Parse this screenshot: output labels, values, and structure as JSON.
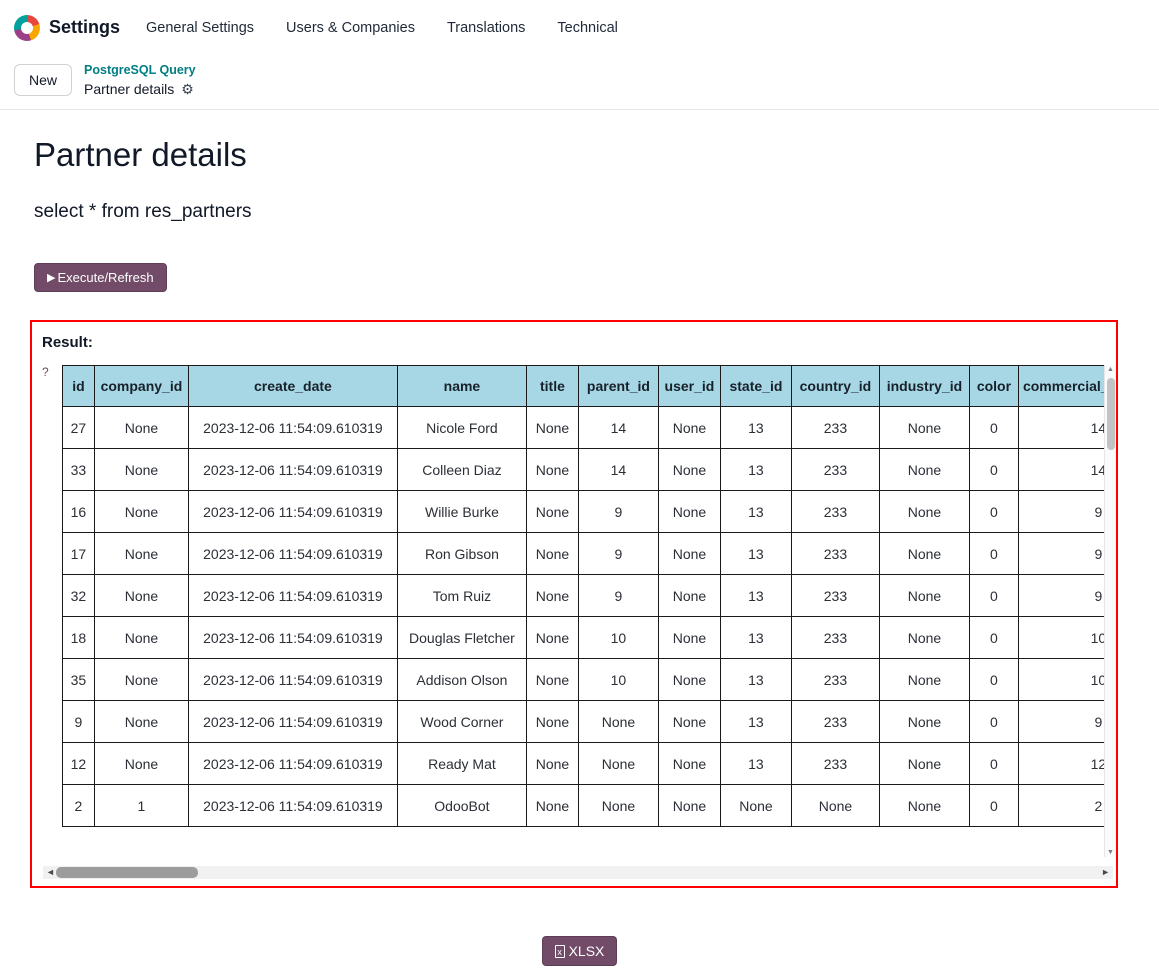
{
  "nav": {
    "app_name": "Settings",
    "menu_items": [
      "General Settings",
      "Users & Companies",
      "Translations",
      "Technical"
    ]
  },
  "breadcrumb": {
    "new_button": "New",
    "parent_link": "PostgreSQL Query",
    "current": "Partner details",
    "gear_icon": "⚙"
  },
  "main": {
    "title": "Partner details",
    "query": "select * from res_partners",
    "execute_icon": "▶",
    "execute_label": "Execute/Refresh",
    "result_label": "Result:",
    "help_icon": "?",
    "xlsx_icon": "x",
    "xlsx_label": "XLSX"
  },
  "scrollbars": {
    "up": "▲",
    "down": "▼",
    "left": "◄",
    "right": "►"
  },
  "colors": {
    "accent_teal": "#017e84",
    "button_purple": "#714B67",
    "table_header_bg": "#a7d7e4",
    "result_border_red": "#ff0000"
  },
  "table": {
    "columns": [
      "id",
      "company_id",
      "create_date",
      "name",
      "title",
      "parent_id",
      "user_id",
      "state_id",
      "country_id",
      "industry_id",
      "color",
      "commercial_partner_id"
    ],
    "rows": [
      [
        "27",
        "None",
        "2023-12-06 11:54:09.610319",
        "Nicole Ford",
        "None",
        "14",
        "None",
        "13",
        "233",
        "None",
        "0",
        "14"
      ],
      [
        "33",
        "None",
        "2023-12-06 11:54:09.610319",
        "Colleen Diaz",
        "None",
        "14",
        "None",
        "13",
        "233",
        "None",
        "0",
        "14"
      ],
      [
        "16",
        "None",
        "2023-12-06 11:54:09.610319",
        "Willie Burke",
        "None",
        "9",
        "None",
        "13",
        "233",
        "None",
        "0",
        "9"
      ],
      [
        "17",
        "None",
        "2023-12-06 11:54:09.610319",
        "Ron Gibson",
        "None",
        "9",
        "None",
        "13",
        "233",
        "None",
        "0",
        "9"
      ],
      [
        "32",
        "None",
        "2023-12-06 11:54:09.610319",
        "Tom Ruiz",
        "None",
        "9",
        "None",
        "13",
        "233",
        "None",
        "0",
        "9"
      ],
      [
        "18",
        "None",
        "2023-12-06 11:54:09.610319",
        "Douglas Fletcher",
        "None",
        "10",
        "None",
        "13",
        "233",
        "None",
        "0",
        "10"
      ],
      [
        "35",
        "None",
        "2023-12-06 11:54:09.610319",
        "Addison Olson",
        "None",
        "10",
        "None",
        "13",
        "233",
        "None",
        "0",
        "10"
      ],
      [
        "9",
        "None",
        "2023-12-06 11:54:09.610319",
        "Wood Corner",
        "None",
        "None",
        "None",
        "13",
        "233",
        "None",
        "0",
        "9"
      ],
      [
        "12",
        "None",
        "2023-12-06 11:54:09.610319",
        "Ready Mat",
        "None",
        "None",
        "None",
        "13",
        "233",
        "None",
        "0",
        "12"
      ],
      [
        "2",
        "1",
        "2023-12-06 11:54:09.610319",
        "OdooBot",
        "None",
        "None",
        "None",
        "None",
        "None",
        "None",
        "0",
        "2"
      ]
    ]
  }
}
